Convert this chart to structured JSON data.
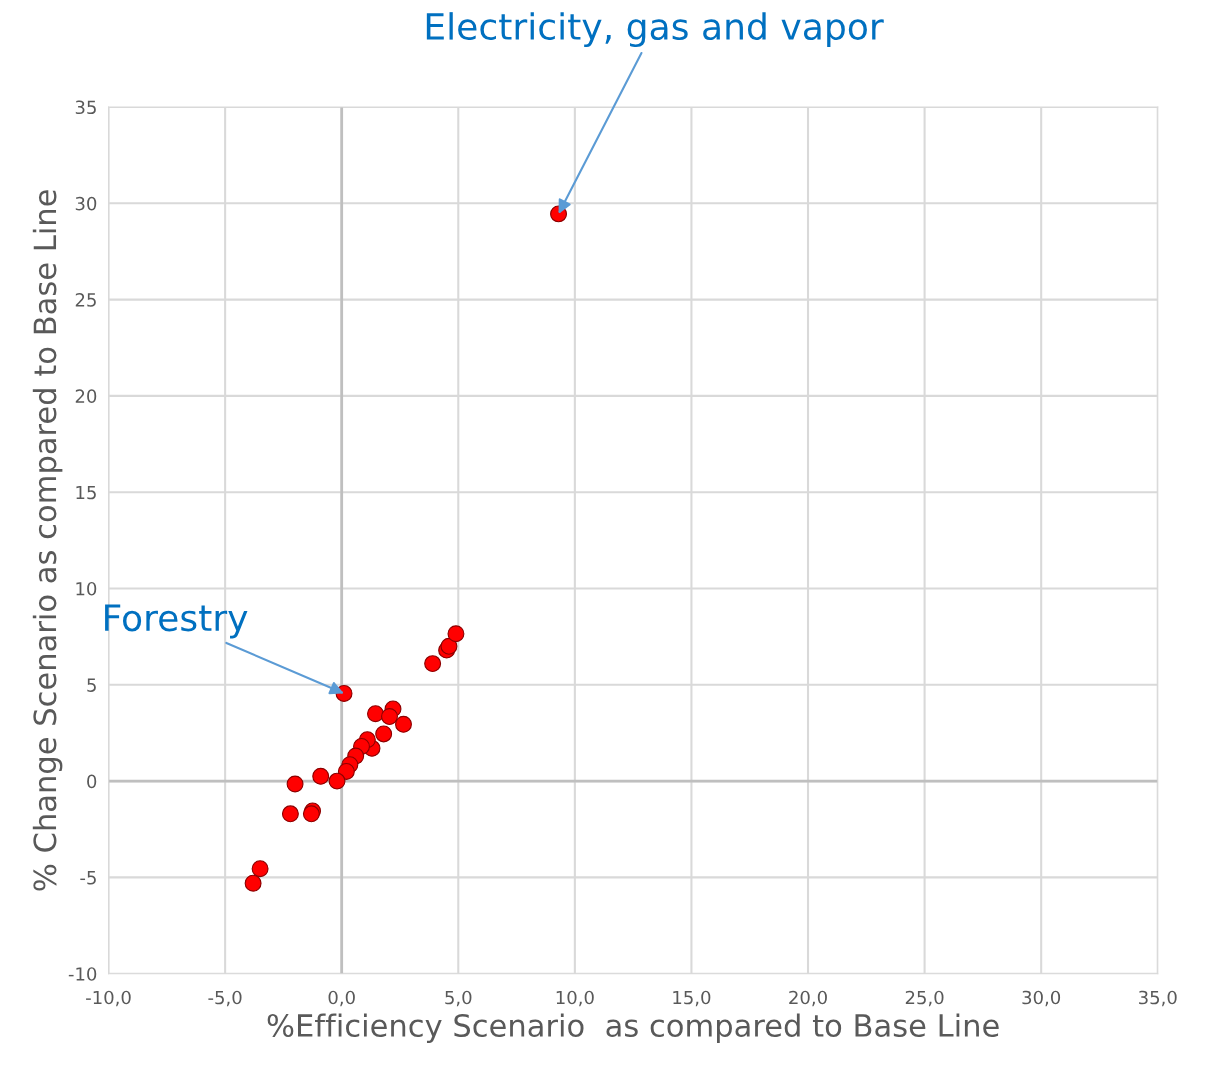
{
  "chart_data": {
    "type": "scatter",
    "xlabel": "%Efficiency Scenario  as compared to Base Line",
    "ylabel": "% Change Scenario as compared to Base Line",
    "series": [
      {
        "color": "#ff0000",
        "x": [
          9.3,
          0.1,
          3.9,
          4.5,
          4.6,
          4.9,
          1.45,
          2.2,
          2.05,
          2.65,
          1.8,
          1.3,
          1.1,
          0.85,
          0.6,
          0.35,
          0.2,
          -0.2,
          -0.9,
          -2.0,
          -2.2,
          -1.25,
          -1.3,
          -3.5,
          -3.8
        ],
        "values": [
          29.45,
          4.55,
          6.1,
          6.8,
          7.0,
          7.65,
          3.5,
          3.75,
          3.35,
          2.95,
          2.45,
          1.7,
          2.15,
          1.8,
          1.3,
          0.85,
          0.5,
          0,
          0.25,
          -0.15,
          -1.7,
          -1.55,
          -1.7,
          -4.55,
          -5.3
        ]
      }
    ],
    "annotations": [
      {
        "text": "Electricity, gas and vapor",
        "x": 9.3,
        "y": 29.45
      },
      {
        "text": "Forestry",
        "x": 0.1,
        "y": 4.55
      }
    ],
    "xlim": [
      -10,
      35
    ],
    "xticks": [
      {
        "value": -10,
        "label": "-10,0"
      },
      {
        "value": -5,
        "label": "-5,0"
      },
      {
        "value": 0,
        "label": "0,0"
      },
      {
        "value": 5,
        "label": "5,0"
      },
      {
        "value": 10,
        "label": "10,0"
      },
      {
        "value": 15,
        "label": "15,0"
      },
      {
        "value": 20,
        "label": "20,0"
      },
      {
        "value": 25,
        "label": "25,0"
      },
      {
        "value": 30,
        "label": "30,0"
      },
      {
        "value": 35,
        "label": "35,0"
      }
    ],
    "ylim": [
      -10,
      35
    ],
    "yticks": [
      -10,
      -5,
      0,
      5,
      10,
      15,
      20,
      25,
      30,
      35
    ],
    "grid": true,
    "marker": "circle"
  }
}
